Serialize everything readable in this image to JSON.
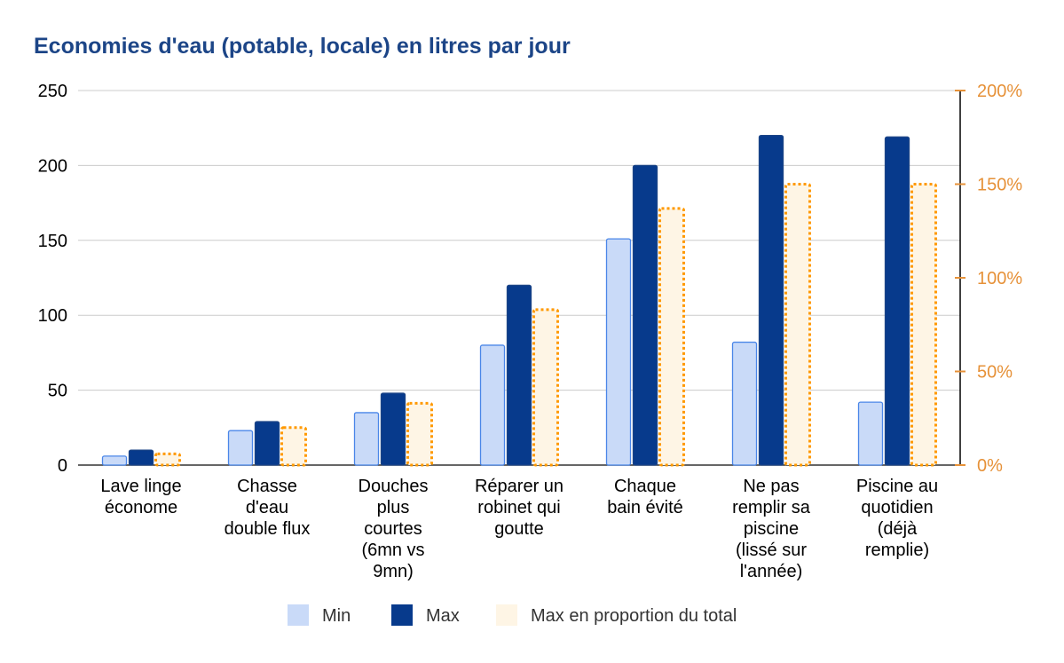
{
  "chart_data": {
    "type": "bar",
    "title": "Economies d'eau (potable, locale) en litres par jour",
    "categories": [
      [
        "Lave linge",
        "économe"
      ],
      [
        "Chasse",
        "d'eau",
        "double flux"
      ],
      [
        "Douches",
        "plus",
        "courtes",
        "(6mn vs",
        "9mn)"
      ],
      [
        "Réparer un",
        "robinet qui",
        "goutte"
      ],
      [
        "Chaque",
        "bain évité"
      ],
      [
        "Ne pas",
        "remplir sa",
        "piscine",
        "(lissé sur",
        "l'année)"
      ],
      [
        "Piscine au",
        "quotidien",
        "(déjà",
        "remplie)"
      ]
    ],
    "series": [
      {
        "name": "Min",
        "axis": "left",
        "color": "#c9daf8",
        "border": "#4a86e8",
        "style": "solid",
        "values": [
          6,
          23,
          35,
          80,
          151,
          82,
          42
        ]
      },
      {
        "name": "Max",
        "axis": "left",
        "color": "#073a8c",
        "border": "#1c4587",
        "style": "solid",
        "values": [
          10,
          29,
          48,
          120,
          200,
          220,
          219
        ]
      },
      {
        "name": "Max en proportion du total",
        "axis": "right",
        "color": "#fef5e5",
        "border": "#ff9900",
        "style": "dotted",
        "values": [
          6,
          20,
          33,
          83,
          137,
          150,
          150
        ]
      }
    ],
    "ylim": [
      0,
      250
    ],
    "yticks": [
      0,
      50,
      100,
      150,
      200,
      250
    ],
    "y2lim": [
      0,
      200
    ],
    "y2ticks": [
      "0%",
      "50%",
      "100%",
      "150%",
      "200%"
    ],
    "y2tick_values": [
      0,
      50,
      100,
      150,
      200
    ],
    "grid": true,
    "legend_position": "bottom",
    "colors": {
      "title": "#1c4587",
      "right_axis": "#e69138",
      "grid": "#cccccc",
      "axis": "#333333"
    }
  }
}
